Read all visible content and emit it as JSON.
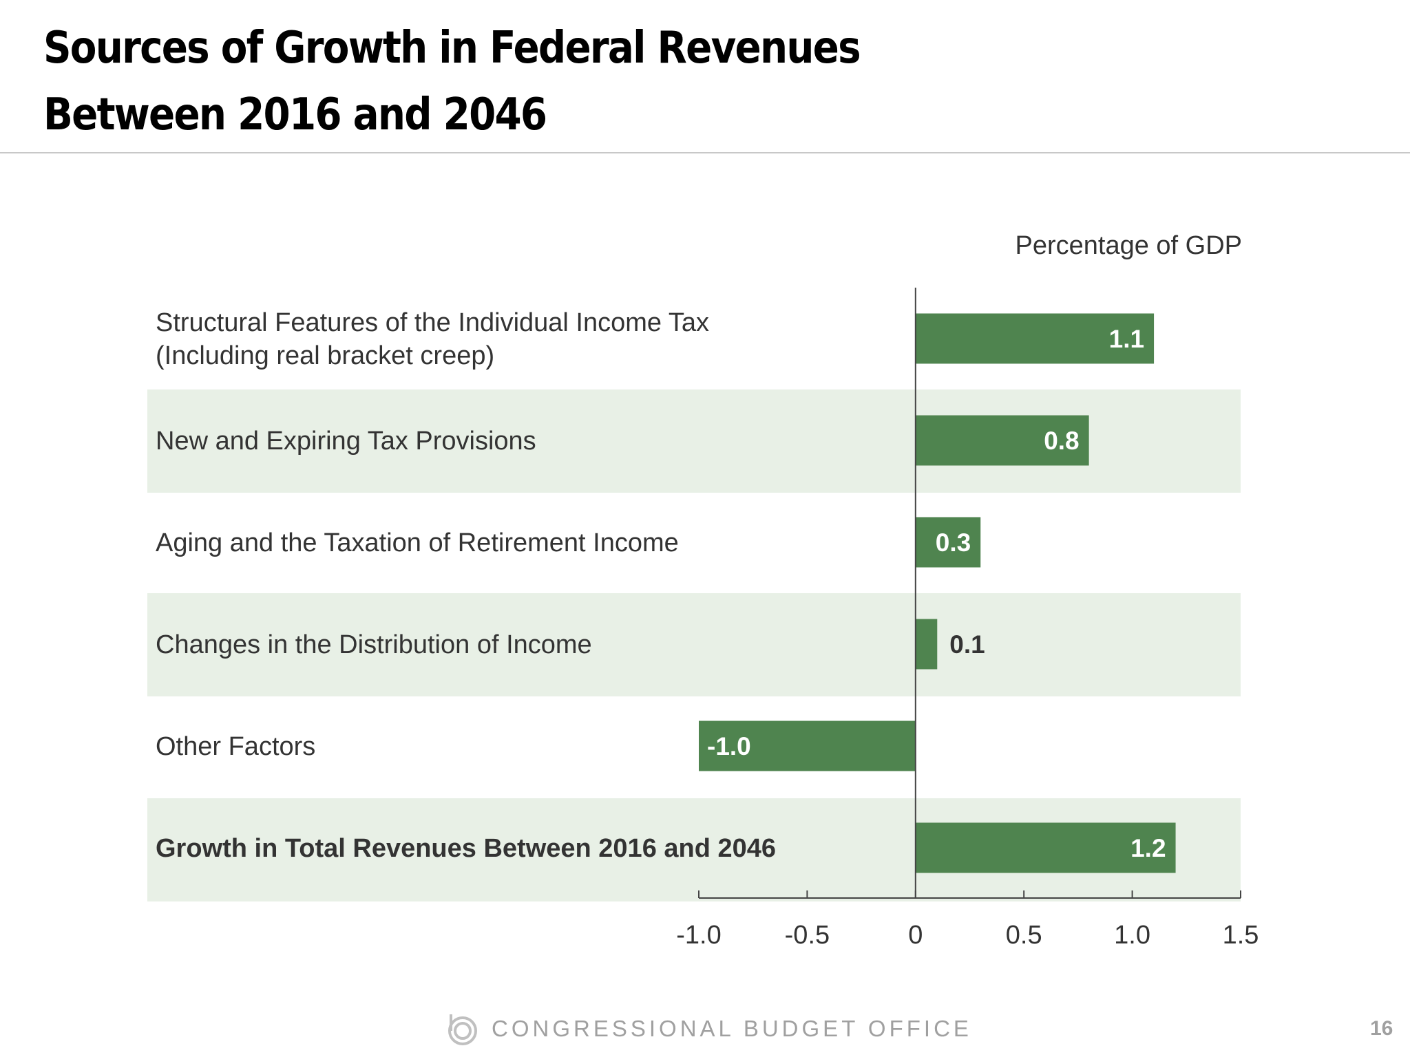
{
  "title_lines": [
    "Sources of Growth in Federal Revenues",
    "Between 2016 and 2046"
  ],
  "footer": {
    "org": "CONGRESSIONAL BUDGET OFFICE",
    "page_number": "16"
  },
  "colors": {
    "bar": "#4f844f",
    "band": "#e8f0e6"
  },
  "chart_data": {
    "type": "bar",
    "orientation": "horizontal",
    "unit_label": "Percentage of GDP",
    "categories": [
      [
        "Structural Features of the Individual Income Tax",
        "(Including real bracket creep)"
      ],
      [
        "New and Expiring Tax Provisions"
      ],
      [
        "Aging and the Taxation of Retirement Income"
      ],
      [
        "Changes in the Distribution of Income"
      ],
      [
        "Other Factors"
      ],
      [
        "Growth in Total Revenues Between 2016 and 2046"
      ]
    ],
    "values": [
      1.1,
      0.8,
      0.3,
      0.1,
      -1.0,
      1.2
    ],
    "data_labels": [
      "1.1",
      "0.8",
      "0.3",
      "0.1",
      "-1.0",
      "1.2"
    ],
    "xlim": [
      -1.0,
      1.5
    ],
    "ticks": [
      -1.0,
      -0.5,
      0,
      0.5,
      1.0,
      1.5
    ],
    "tick_labels": [
      "-1.0",
      "-0.5",
      "0",
      "0.5",
      "1.0",
      "1.5"
    ],
    "grid": false,
    "legend": "none"
  }
}
